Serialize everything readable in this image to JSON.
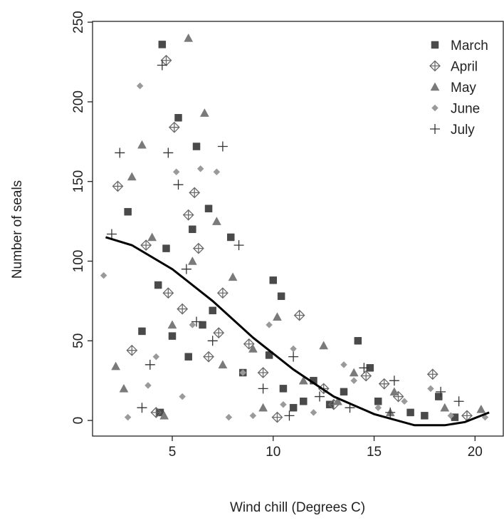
{
  "chart_data": {
    "type": "scatter",
    "x_label": "Wind chill (Degrees C)",
    "y_label": "Number of seals",
    "xlim": [
      1.05,
      21.4
    ],
    "ylim": [
      -9.8,
      250.5
    ],
    "xticks": [
      5,
      10,
      15,
      20
    ],
    "yticks": [
      0,
      50,
      100,
      150,
      200,
      250
    ],
    "legend": "top-right",
    "series": [
      {
        "name": "March",
        "color": "#4a4a4a",
        "marker": "square",
        "x": [
          2.8,
          4.5,
          5.3,
          6.2,
          6.8,
          7.9,
          10.0,
          10.4,
          14.2,
          4.3,
          5.0,
          4.7,
          6.0,
          9.8,
          12.0,
          13.5,
          15.2,
          16.8,
          18.2,
          11.0,
          8.5,
          7.0,
          5.8,
          4.4,
          10.5,
          12.8,
          17.5,
          19.0,
          3.5,
          6.5,
          11.5,
          14.8
        ],
        "y": [
          131,
          236,
          190,
          172,
          133,
          115,
          88,
          78,
          50,
          85,
          53,
          108,
          120,
          41,
          25,
          18,
          12,
          5,
          15,
          8,
          30,
          69,
          40,
          5,
          20,
          10,
          3,
          2,
          56,
          60,
          12,
          33
        ]
      },
      {
        "name": "April",
        "color": "#6a6a6a",
        "marker": "diamond-plus",
        "x": [
          2.3,
          3.0,
          4.7,
          5.1,
          5.8,
          6.1,
          6.3,
          7.5,
          11.3,
          4.2,
          3.7,
          5.5,
          7.3,
          8.8,
          9.5,
          12.5,
          14.6,
          16.2,
          17.9,
          19.6,
          13.0,
          10.2,
          6.8,
          4.8,
          15.5
        ],
        "y": [
          147,
          44,
          226,
          184,
          129,
          143,
          108,
          80,
          66,
          5,
          110,
          70,
          55,
          48,
          30,
          20,
          28,
          15,
          29,
          3,
          10,
          2,
          40,
          80,
          23
        ]
      },
      {
        "name": "May",
        "color": "#7a7a7a",
        "marker": "triangle",
        "x": [
          5.8,
          6.6,
          3.5,
          2.2,
          2.6,
          3.0,
          7.2,
          4.0,
          6.0,
          9.0,
          10.2,
          12.5,
          14.0,
          16.0,
          18.5,
          20.3,
          11.5,
          8.0,
          5.0,
          7.5,
          13.2,
          9.5,
          4.6,
          15.8
        ],
        "y": [
          240,
          193,
          173,
          34,
          20,
          153,
          125,
          115,
          100,
          45,
          65,
          47,
          30,
          18,
          8,
          7,
          25,
          90,
          60,
          35,
          12,
          8,
          3,
          5
        ]
      },
      {
        "name": "June",
        "color": "#9a9a9a",
        "marker": "diamond",
        "x": [
          1.6,
          3.4,
          5.2,
          6.4,
          7.2,
          2.8,
          9.8,
          11.0,
          14.0,
          17.8,
          20.5,
          4.2,
          6.0,
          8.5,
          10.5,
          12.0,
          15.2,
          18.8,
          5.5,
          7.8,
          13.5,
          16.5,
          9.0,
          3.8
        ],
        "y": [
          91,
          210,
          156,
          158,
          156,
          2,
          60,
          45,
          25,
          20,
          2,
          40,
          60,
          30,
          10,
          5,
          8,
          3,
          15,
          2,
          35,
          12,
          3,
          22
        ]
      },
      {
        "name": "July",
        "color": "#333333",
        "marker": "plus",
        "x": [
          4.5,
          2.4,
          4.8,
          5.3,
          7.5,
          2.0,
          8.3,
          6.2,
          3.5,
          3.9,
          9.5,
          11.0,
          12.3,
          14.5,
          16.0,
          18.3,
          19.2,
          7.0,
          5.7,
          10.8,
          13.8,
          15.8
        ],
        "y": [
          223,
          168,
          168,
          148,
          172,
          117,
          110,
          62,
          8,
          35,
          20,
          40,
          15,
          33,
          25,
          18,
          12,
          50,
          95,
          3,
          8,
          5
        ]
      }
    ],
    "fit": {
      "color": "#000000",
      "x": [
        1.7,
        3,
        5,
        7,
        9,
        11,
        13,
        15,
        17,
        18.5,
        19.5,
        20.7
      ],
      "y": [
        115,
        110,
        95,
        75,
        52,
        32,
        15,
        4,
        -3,
        -3,
        -1,
        5
      ]
    }
  }
}
